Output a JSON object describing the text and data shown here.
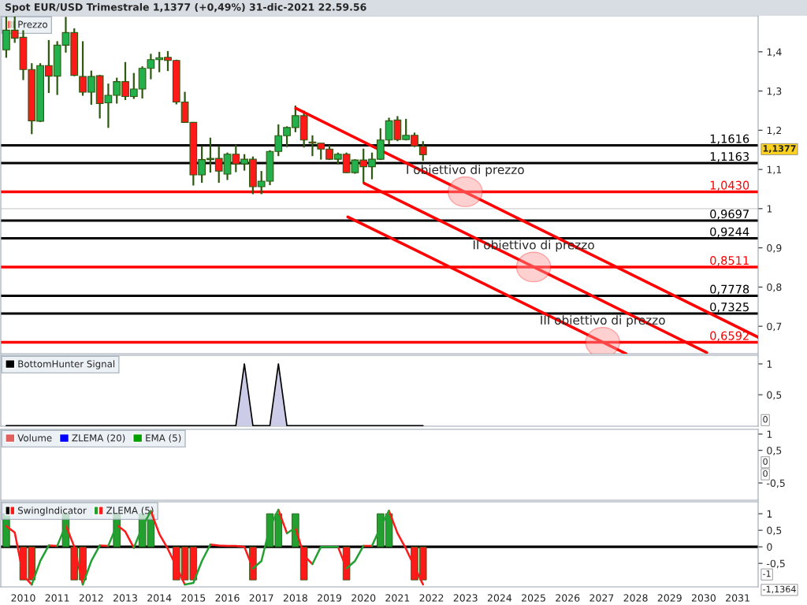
{
  "chart_data": [
    {
      "type": "candlestick",
      "title": "Spot EUR/USD Trimestrale 1,1377 (+0,49%) 31-dic-2021 22.59.56",
      "series": [
        {
          "name": "Prezzo",
          "type": "candlestick",
          "x": [
            2009.5,
            2009.75,
            2010.0,
            2010.25,
            2010.5,
            2010.75,
            2011.0,
            2011.25,
            2011.5,
            2011.75,
            2012.0,
            2012.25,
            2012.5,
            2012.75,
            2013.0,
            2013.25,
            2013.5,
            2013.75,
            2014.0,
            2014.25,
            2014.5,
            2014.75,
            2015.0,
            2015.25,
            2015.5,
            2015.75,
            2016.0,
            2016.25,
            2016.5,
            2016.75,
            2017.0,
            2017.25,
            2017.5,
            2017.75,
            2018.0,
            2018.25,
            2018.5,
            2018.75,
            2019.0,
            2019.25,
            2019.5,
            2019.75,
            2020.0,
            2020.25,
            2020.5,
            2020.75,
            2021.0,
            2021.25,
            2021.5,
            2021.75
          ],
          "ohlc": [
            [
              1.405,
              1.49,
              1.385,
              1.455
            ],
            [
              1.455,
              1.49,
              1.423,
              1.435
            ],
            [
              1.437,
              1.455,
              1.328,
              1.355
            ],
            [
              1.355,
              1.371,
              1.19,
              1.224
            ],
            [
              1.223,
              1.371,
              1.221,
              1.365
            ],
            [
              1.365,
              1.43,
              1.295,
              1.338
            ],
            [
              1.338,
              1.427,
              1.29,
              1.417
            ],
            [
              1.417,
              1.489,
              1.398,
              1.449
            ],
            [
              1.449,
              1.46,
              1.338,
              1.34
            ],
            [
              1.337,
              1.427,
              1.288,
              1.297
            ],
            [
              1.297,
              1.352,
              1.265,
              1.337
            ],
            [
              1.339,
              1.341,
              1.23,
              1.268
            ],
            [
              1.27,
              1.319,
              1.206,
              1.289
            ],
            [
              1.289,
              1.334,
              1.268,
              1.324
            ],
            [
              1.324,
              1.374,
              1.277,
              1.286
            ],
            [
              1.286,
              1.346,
              1.28,
              1.305
            ],
            [
              1.305,
              1.363,
              1.281,
              1.358
            ],
            [
              1.358,
              1.395,
              1.33,
              1.38
            ],
            [
              1.38,
              1.4,
              1.348,
              1.385
            ],
            [
              1.386,
              1.402,
              1.351,
              1.378
            ],
            [
              1.378,
              1.38,
              1.266,
              1.272
            ],
            [
              1.272,
              1.298,
              1.22,
              1.22
            ],
            [
              1.22,
              1.221,
              1.059,
              1.086
            ],
            [
              1.086,
              1.16,
              1.066,
              1.125
            ],
            [
              1.125,
              1.181,
              1.092,
              1.128
            ],
            [
              1.128,
              1.16,
              1.066,
              1.096
            ],
            [
              1.088,
              1.143,
              1.073,
              1.139
            ],
            [
              1.139,
              1.163,
              1.093,
              1.114
            ],
            [
              1.114,
              1.139,
              1.097,
              1.126
            ],
            [
              1.126,
              1.133,
              1.037,
              1.056
            ],
            [
              1.056,
              1.096,
              1.037,
              1.07
            ],
            [
              1.07,
              1.149,
              1.06,
              1.146
            ],
            [
              1.146,
              1.215,
              1.134,
              1.186
            ],
            [
              1.186,
              1.21,
              1.157,
              1.207
            ],
            [
              1.207,
              1.263,
              1.195,
              1.237
            ],
            [
              1.237,
              1.25,
              1.156,
              1.175
            ],
            [
              1.17,
              1.187,
              1.134,
              1.167
            ],
            [
              1.167,
              1.167,
              1.125,
              1.152
            ],
            [
              1.152,
              1.162,
              1.124,
              1.126
            ],
            [
              1.126,
              1.143,
              1.113,
              1.139
            ],
            [
              1.139,
              1.143,
              1.091,
              1.092
            ],
            [
              1.092,
              1.126,
              1.089,
              1.124
            ],
            [
              1.124,
              1.153,
              1.066,
              1.107
            ],
            [
              1.107,
              1.143,
              1.075,
              1.126
            ],
            [
              1.126,
              1.205,
              1.124,
              1.175
            ],
            [
              1.175,
              1.232,
              1.164,
              1.224
            ],
            [
              1.226,
              1.236,
              1.172,
              1.176
            ],
            [
              1.176,
              1.229,
              1.174,
              1.187
            ],
            [
              1.187,
              1.194,
              1.157,
              1.16
            ],
            [
              1.159,
              1.172,
              1.122,
              1.1377
            ]
          ],
          "colors": [
            "#22b14c",
            "#ff1a1a",
            "#ff1a1a",
            "#ff1a1a",
            "#22b14c",
            "#ff1a1a",
            "#22b14c",
            "#22b14c",
            "#ff1a1a",
            "#ff1a1a",
            "#22b14c",
            "#ff1a1a",
            "#22b14c",
            "#22b14c",
            "#ff1a1a",
            "#22b14c",
            "#22b14c",
            "#22b14c",
            "#22b14c",
            "#ff1a1a",
            "#ff1a1a",
            "#ff1a1a",
            "#ff1a1a",
            "#22b14c",
            "#22b14c",
            "#ff1a1a",
            "#22b14c",
            "#ff1a1a",
            "#22b14c",
            "#ff1a1a",
            "#22b14c",
            "#22b14c",
            "#22b14c",
            "#22b14c",
            "#22b14c",
            "#ff1a1a",
            "#ff1a1a",
            "#ff1a1a",
            "#ff1a1a",
            "#22b14c",
            "#ff1a1a",
            "#22b14c",
            "#ff1a1a",
            "#22b14c",
            "#22b14c",
            "#22b14c",
            "#ff1a1a",
            "#22b14c",
            "#ff1a1a",
            "#ff1a1a"
          ]
        },
        {
          "type": "line",
          "color": "#ff0000",
          "x": [
            2018.01,
            2031.6
          ],
          "values": [
            1.256,
            0.672
          ]
        },
        {
          "type": "line",
          "color": "#ff0000",
          "x": [
            2020.02,
            2030.09
          ],
          "values": [
            1.065,
            0.633
          ]
        },
        {
          "type": "line",
          "color": "#ff0000",
          "x": [
            2019.54,
            2027.72
          ],
          "values": [
            0.979,
            0.63
          ]
        }
      ],
      "ref_lines": [
        {
          "axis": "y",
          "value": 1,
          "label": null,
          "color": "#dddddd"
        },
        {
          "axis": "y",
          "value": 1.1616,
          "label": "1,1616",
          "color": "#000000"
        },
        {
          "axis": "y",
          "value": 1.1163,
          "label": "1,1163",
          "color": "#000000"
        },
        {
          "axis": "y",
          "value": 1.043,
          "label": "1,0430",
          "color": "#ff0000"
        },
        {
          "axis": "y",
          "value": 0.9697,
          "label": "0,9697",
          "color": "#000000"
        },
        {
          "axis": "y",
          "value": 0.9244,
          "label": "0,9244",
          "color": "#000000"
        },
        {
          "axis": "y",
          "value": 0.8511,
          "label": "0,8511",
          "color": "#ff0000"
        },
        {
          "axis": "y",
          "value": 0.7778,
          "label": "0,7778",
          "color": "#000000"
        },
        {
          "axis": "y",
          "value": 0.7325,
          "label": "0,7325",
          "color": "#000000"
        },
        {
          "axis": "y",
          "value": 0.6592,
          "label": "0,6592",
          "color": "#ff0000"
        }
      ],
      "annotations": [
        {
          "text": "I obiettivo di prezzo",
          "x": 2022.99,
          "y": 1.043
        },
        {
          "text": "II obiettivo di prezzo",
          "x": 2025.0,
          "y": 0.8511
        },
        {
          "text": "III obiettivo di prezzo",
          "x": 2027.03,
          "y": 0.6592
        },
        "1,1377"
      ],
      "xlim": [
        2009.34,
        2031.6
      ],
      "xticks": [
        2010,
        2011,
        2012,
        2013,
        2014,
        2015,
        2016,
        2017,
        2018,
        2019,
        2020,
        2021,
        2022,
        2023,
        2024,
        2025,
        2026,
        2027,
        2028,
        2029,
        2030,
        2031
      ],
      "ylim": [
        0.63,
        1.492
      ],
      "yticks": [
        {
          "value": 0.7,
          "label": "0,7"
        },
        {
          "value": 0.8,
          "label": "0,8"
        },
        {
          "value": 0.9,
          "label": "0,9"
        },
        {
          "value": 1,
          "label": "1"
        },
        {
          "value": 1.1,
          "label": "1,1"
        },
        {
          "value": 1.2,
          "label": "1,2"
        },
        {
          "value": 1.3,
          "label": "1,3"
        },
        {
          "value": 1.4,
          "label": "1,4"
        }
      ],
      "tick_labels": "y",
      "legend": "top left"
    },
    {
      "type": "area",
      "x": [
        2009.5,
        2009.75,
        2010.0,
        2010.25,
        2010.5,
        2010.75,
        2011.0,
        2011.25,
        2011.5,
        2011.75,
        2012.0,
        2012.25,
        2012.5,
        2012.75,
        2013.0,
        2013.25,
        2013.5,
        2013.75,
        2014.0,
        2014.25,
        2014.5,
        2014.75,
        2015.0,
        2015.25,
        2015.5,
        2015.75,
        2016.0,
        2016.25,
        2016.5,
        2016.75,
        2017.0,
        2017.25,
        2017.5,
        2017.75,
        2018.0,
        2018.25,
        2018.5,
        2018.75,
        2019.0,
        2019.25,
        2019.5,
        2019.75,
        2020.0,
        2020.25,
        2020.5,
        2020.75,
        2021.0,
        2021.25,
        2021.5,
        2021.75
      ],
      "series": [
        {
          "name": "BottomHunter Signal",
          "color": "#aaaad8",
          "values": [
            0,
            0,
            0,
            0,
            0,
            0,
            0,
            0,
            0,
            0,
            0,
            0,
            0,
            0,
            0,
            0,
            0,
            0,
            0,
            0,
            0,
            0,
            0,
            0,
            0,
            0,
            0,
            0,
            1,
            0,
            0,
            0,
            1,
            0,
            0,
            0,
            0,
            0,
            0,
            0,
            0,
            0,
            0,
            0,
            0,
            0,
            0,
            0,
            0,
            0
          ]
        }
      ],
      "annotations": [
        "0"
      ],
      "xlim": [
        2009.34,
        2031.6
      ],
      "xticks": [
        2010,
        2011,
        2012,
        2013,
        2014,
        2015,
        2016,
        2017,
        2018,
        2019,
        2020,
        2021,
        2022,
        2023,
        2024,
        2025,
        2026,
        2027,
        2028,
        2029,
        2030,
        2031
      ],
      "ylim": [
        -0.01,
        1.14
      ],
      "yticks": [
        {
          "value": 0.5,
          "label": "0,5"
        },
        1
      ],
      "tick_labels": "y",
      "legend": "top left"
    },
    {
      "type": "line",
      "series": [
        {
          "name": "Volume",
          "color": "#e06060"
        },
        {
          "name": "ZLEMA (20)",
          "color": "#0000ff"
        },
        {
          "name": "EMA (5)",
          "color": "#00a000"
        }
      ],
      "annotations": [
        "0",
        "0"
      ],
      "ylim": [
        -1.03,
        1.145
      ],
      "yticks": [
        {
          "value": -0.5,
          "label": "-0,5"
        },
        {
          "value": 0.5,
          "label": "0,5"
        },
        1
      ],
      "tick_labels": "y",
      "legend": "top left"
    },
    {
      "type": "bar",
      "x": [
        2009.5,
        2009.75,
        2010.0,
        2010.25,
        2010.5,
        2010.75,
        2011.0,
        2011.25,
        2011.5,
        2011.75,
        2012.0,
        2012.25,
        2012.5,
        2012.75,
        2013.0,
        2013.25,
        2013.5,
        2013.75,
        2014.0,
        2014.25,
        2014.5,
        2014.75,
        2015.0,
        2015.25,
        2015.5,
        2015.75,
        2016.0,
        2016.25,
        2016.5,
        2016.75,
        2017.0,
        2017.25,
        2017.5,
        2017.75,
        2018.0,
        2018.25,
        2018.5,
        2018.75,
        2019.0,
        2019.25,
        2019.5,
        2019.75,
        2020.0,
        2020.25,
        2020.5,
        2020.75,
        2021.0,
        2021.25,
        2021.5,
        2021.75
      ],
      "series": [
        {
          "name": "SwingIndicator",
          "type": "bar",
          "values": [
            1,
            null,
            -1,
            -1,
            null,
            null,
            null,
            1,
            -1,
            -1,
            null,
            null,
            null,
            1,
            null,
            null,
            1,
            1,
            null,
            null,
            -1,
            -1,
            -1,
            null,
            null,
            null,
            null,
            null,
            null,
            -1,
            null,
            1,
            1,
            null,
            1,
            -1,
            null,
            null,
            null,
            null,
            -1,
            null,
            null,
            null,
            1,
            1,
            null,
            null,
            -1,
            -1
          ],
          "colors": [
            "#22a030",
            null,
            "#ff1a1a",
            "#ff1a1a",
            null,
            null,
            null,
            "#22a030",
            "#ff1a1a",
            "#ff1a1a",
            null,
            null,
            null,
            "#22a030",
            null,
            null,
            "#22a030",
            "#22a030",
            null,
            null,
            "#ff1a1a",
            "#ff1a1a",
            "#ff1a1a",
            null,
            null,
            null,
            null,
            null,
            null,
            "#ff1a1a",
            null,
            "#22a030",
            "#22a030",
            null,
            "#22a030",
            "#ff1a1a",
            null,
            null,
            null,
            null,
            "#ff1a1a",
            null,
            null,
            null,
            "#22a030",
            "#22a030",
            null,
            null,
            "#ff1a1a",
            "#ff1a1a"
          ]
        },
        {
          "name": "ZLEMA (5)",
          "type": "line",
          "color": "#ff1a1a",
          "x": [
            2009.5,
            2009.75,
            2010.0,
            2010.25,
            null,
            2010.75,
            2011.0,
            null,
            2011.25,
            2011.5,
            2011.75,
            null,
            2012.25,
            2012.5,
            null,
            2012.75,
            2013.0,
            2013.25,
            null,
            2013.75,
            2014.0,
            2014.25,
            2014.5,
            2014.75,
            null,
            2015.5,
            2015.75,
            2016.0,
            2016.25,
            2016.5,
            2016.75,
            null,
            2017.5,
            2017.75,
            null,
            2018.0,
            2018.25,
            2018.5,
            null,
            2019.25,
            2019.5,
            null,
            2020.0,
            2020.25,
            null,
            2020.75,
            2021.0,
            2021.25,
            2021.5,
            2021.75
          ],
          "values": [
            0.63,
            0.43,
            -0.86,
            -1.14,
            null,
            0.04,
            0.03,
            null,
            0.66,
            0.0,
            -1.14,
            null,
            0.04,
            0.03,
            null,
            0.66,
            0.46,
            -0.03,
            null,
            1.08,
            0.39,
            -0.06,
            -0.6,
            -1.14,
            null,
            0.07,
            0.04,
            0.03,
            0.03,
            0,
            -0.65,
            null,
            1.12,
            0.41,
            null,
            0.58,
            -0.26,
            -0.52,
            null,
            0,
            -0.65,
            null,
            0.03,
            0.03,
            null,
            1.09,
            0.41,
            -0.06,
            -0.6,
            -1.1364
          ]
        },
        {
          "type": "line",
          "color": "#22a030",
          "x": [
            2010.25,
            2010.5,
            2010.75,
            null,
            2011.0,
            2011.25,
            null,
            2011.75,
            2012.0,
            2012.25,
            null,
            2012.5,
            2012.75,
            null,
            2013.25,
            2013.5,
            2013.75,
            null,
            2014.75,
            2015.0,
            2015.25,
            2015.5,
            null,
            2016.75,
            2017.0,
            2017.25,
            2017.5,
            null,
            2017.75,
            2018.0,
            null,
            2018.5,
            2018.75,
            2019.0,
            2019.25,
            null,
            2019.5,
            2019.75,
            2020.0,
            null,
            2020.25,
            2020.5,
            2020.75
          ],
          "values": [
            -1.14,
            -0.43,
            0.04,
            null,
            0.03,
            0.66,
            null,
            -1.14,
            -0.43,
            0.04,
            null,
            0.03,
            0.66,
            null,
            -0.03,
            0.6,
            1.08,
            null,
            -1.14,
            -1.09,
            -0.43,
            0.07,
            null,
            -0.65,
            -0.43,
            0.6,
            1.12,
            null,
            0.41,
            0.58,
            null,
            -0.52,
            0,
            0,
            0,
            null,
            -0.65,
            -0.43,
            0.03,
            null,
            0.03,
            0.6,
            1.09
          ]
        }
      ],
      "ref_lines": [
        {
          "axis": "y",
          "value": 0,
          "label": null,
          "color": "#000000"
        }
      ],
      "annotations": [
        "-1",
        "-1,1364"
      ],
      "xlim": [
        2009.34,
        2031.6
      ],
      "xticks": [
        2010,
        2011,
        2012,
        2013,
        2014,
        2015,
        2016,
        2017,
        2018,
        2019,
        2020,
        2021,
        2022,
        2023,
        2024,
        2025,
        2026,
        2027,
        2028,
        2029,
        2030,
        2031
      ],
      "ylim": [
        -1.21,
        1.36
      ],
      "yticks": [
        {
          "value": -0.5,
          "label": "-0,5"
        },
        0,
        {
          "value": 0.5,
          "label": "0,5"
        },
        1
      ],
      "legend": "top left"
    }
  ]
}
